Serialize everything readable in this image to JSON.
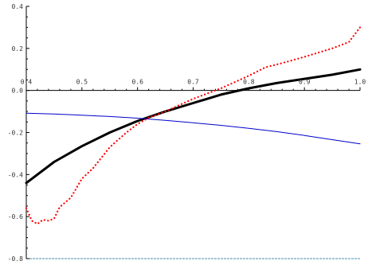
{
  "chart_data": {
    "type": "line",
    "title": "",
    "xlabel": "",
    "ylabel": "",
    "xlim": [
      0.4,
      1.0
    ],
    "ylim": [
      -0.8,
      0.4
    ],
    "grid": false,
    "x_tick_labels": [
      "0.4",
      "0.5",
      "0.6",
      "0.7",
      "0.8",
      "0.9",
      "1.0"
    ],
    "x_tick_values": [
      0.4,
      0.5,
      0.6,
      0.7,
      0.8,
      0.9,
      1.0
    ],
    "y_tick_labels": [
      "0.4",
      "0.2",
      "0.0",
      "-0.2",
      "-0.4",
      "-0.6",
      "-0.8"
    ],
    "y_tick_values": [
      0.4,
      0.2,
      0.0,
      -0.2,
      -0.4,
      -0.6,
      -0.8
    ],
    "series": [
      {
        "color": "#000000",
        "style": "solid-thick",
        "x": [
          0.4,
          0.45,
          0.5,
          0.55,
          0.6,
          0.65,
          0.7,
          0.75,
          0.8,
          0.85,
          0.9,
          0.95,
          1.0
        ],
        "y": [
          -0.44,
          -0.34,
          -0.265,
          -0.2,
          -0.145,
          -0.1,
          -0.06,
          -0.02,
          0.01,
          0.035,
          0.055,
          0.075,
          0.1
        ]
      },
      {
        "color": "#0000cc",
        "style": "solid-thin",
        "x": [
          0.4,
          0.45,
          0.5,
          0.55,
          0.6,
          0.65,
          0.7,
          0.75,
          0.8,
          0.85,
          0.9,
          0.95,
          1.0
        ],
        "y": [
          -0.108,
          -0.112,
          -0.118,
          -0.124,
          -0.132,
          -0.142,
          -0.154,
          -0.166,
          -0.18,
          -0.196,
          -0.214,
          -0.234,
          -0.254
        ]
      },
      {
        "color": "#ff0000",
        "style": "dotted",
        "x": [
          0.4,
          0.41,
          0.42,
          0.43,
          0.44,
          0.45,
          0.46,
          0.48,
          0.5,
          0.52,
          0.55,
          0.58,
          0.6,
          0.62,
          0.65,
          0.7,
          0.75,
          0.8,
          0.83,
          0.86,
          0.9,
          0.95,
          0.98,
          1.0
        ],
        "y": [
          -0.56,
          -0.62,
          -0.635,
          -0.615,
          -0.62,
          -0.61,
          -0.555,
          -0.51,
          -0.42,
          -0.37,
          -0.27,
          -0.2,
          -0.16,
          -0.13,
          -0.1,
          -0.04,
          0.01,
          0.07,
          0.11,
          0.13,
          0.16,
          0.2,
          0.23,
          0.3
        ]
      }
    ]
  }
}
